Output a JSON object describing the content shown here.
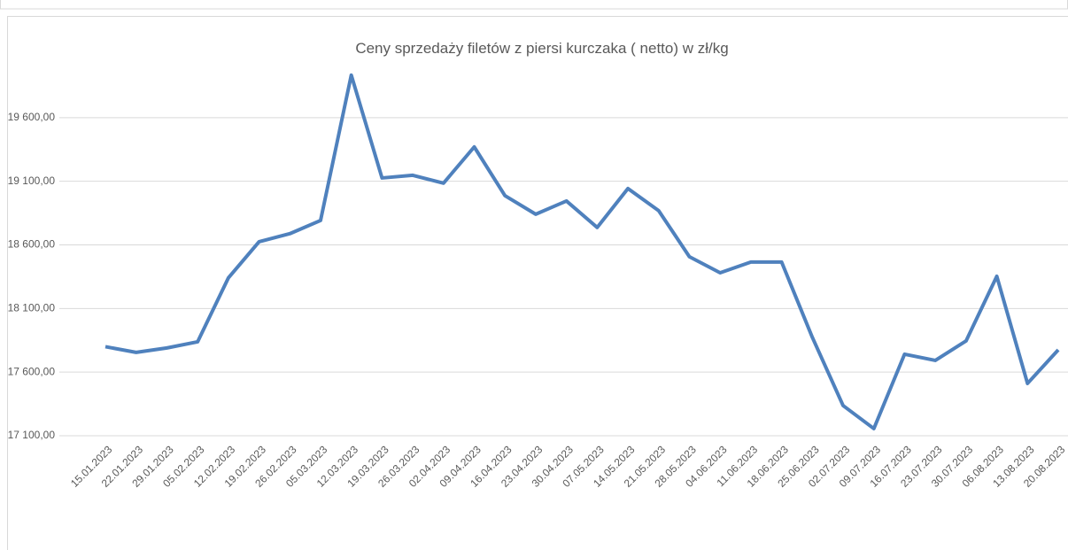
{
  "chart_data": {
    "type": "line",
    "title": "Ceny sprzedaży filetów z piersi kurczaka ( netto) w zł/kg",
    "categories": [
      "15.01.2023",
      "22.01.2023",
      "29.01.2023",
      "05.02.2023",
      "12.02.2023",
      "19.02.2023",
      "26.02.2023",
      "05.03.2023",
      "12.03.2023",
      "19.03.2023",
      "26.03.2023",
      "02.04.2023",
      "09.04.2023",
      "16.04.2023",
      "23.04.2023",
      "30.04.2023",
      "07.05.2023",
      "14.05.2023",
      "21.05.2023",
      "28.05.2023",
      "04.06.2023",
      "11.06.2023",
      "18.06.2023",
      "25.06.2023",
      "02.07.2023",
      "09.07.2023",
      "16.07.2023",
      "23.07.2023",
      "30.07.2023",
      "06.08.2023",
      "13.08.2023",
      "20.08.2023"
    ],
    "values": [
      17800,
      17755,
      17790,
      17838,
      18340,
      18625,
      18688,
      18792,
      19934,
      19126,
      19147,
      19085,
      19370,
      18987,
      18841,
      18945,
      18737,
      19043,
      18869,
      18507,
      18381,
      18465,
      18465,
      17873,
      17337,
      17156,
      17741,
      17692,
      17845,
      18353,
      17511,
      17775
    ],
    "color": "#4f81bd",
    "ylim": [
      17100,
      20100
    ],
    "yticks": [
      {
        "value": 17100,
        "label": "17 100,00"
      },
      {
        "value": 17600,
        "label": "17 600,00"
      },
      {
        "value": 18100,
        "label": "18 100,00"
      },
      {
        "value": 18600,
        "label": "18 600,00"
      },
      {
        "value": 19100,
        "label": "19 100,00"
      },
      {
        "value": 19600,
        "label": "19 600,00"
      }
    ],
    "grid": true
  }
}
